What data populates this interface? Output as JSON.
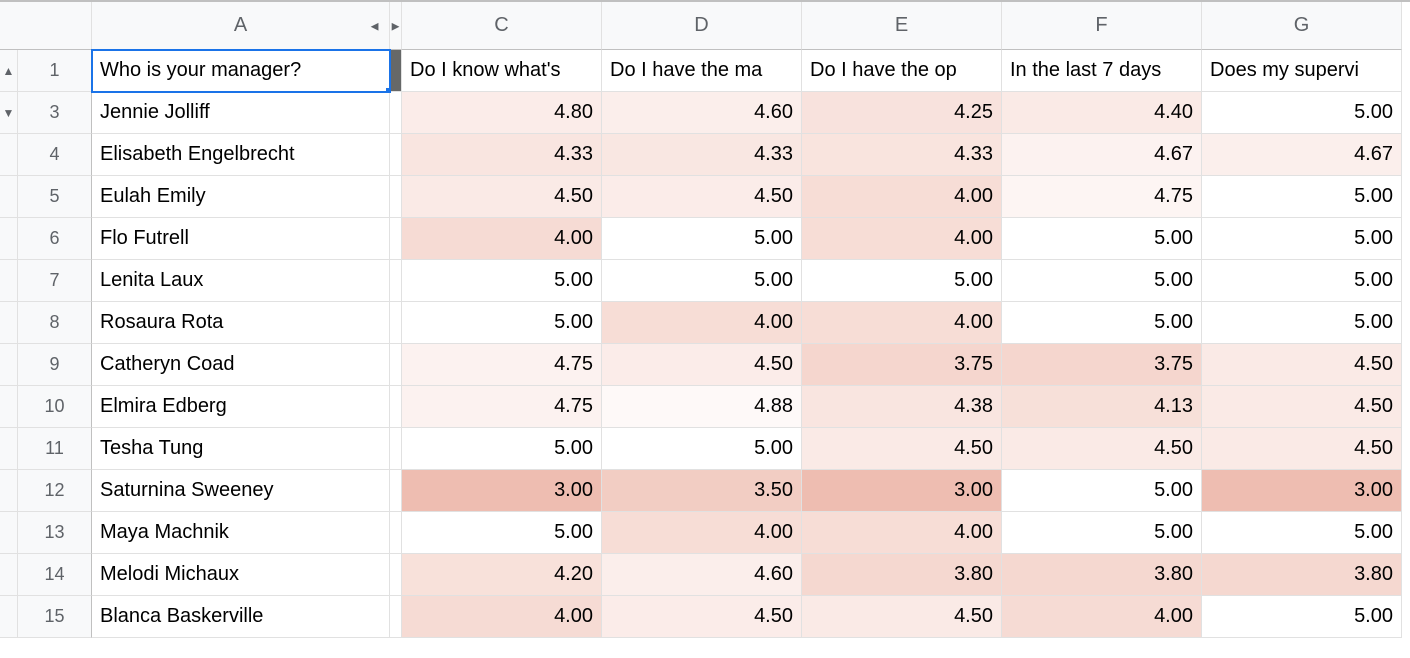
{
  "columns": {
    "A": "A",
    "C": "C",
    "D": "D",
    "E": "E",
    "F": "F",
    "G": "G"
  },
  "group_icons": {
    "collapse_left": "◄",
    "expand_right": "►",
    "collapse_up": "▲",
    "expand_down": "▼"
  },
  "header_row_num": "1",
  "headers": {
    "A": "Who is your manager?",
    "C": "Do I know what's ",
    "D": "Do I have the ma",
    "E": "Do I have the op",
    "F": "In the last 7 days",
    "G": "Does my supervi"
  },
  "row_numbers": [
    "3",
    "4",
    "5",
    "6",
    "7",
    "8",
    "9",
    "10",
    "11",
    "12",
    "13",
    "14",
    "15"
  ],
  "rows": [
    {
      "name": "Jennie Jolliff",
      "vals": [
        "4.80",
        "4.60",
        "4.25",
        "4.40",
        "5.00"
      ],
      "bg": [
        "#fbece9",
        "#fbeeeb",
        "#f8e2dd",
        "#faeae6",
        "#ffffff"
      ]
    },
    {
      "name": "Elisabeth Engelbrecht",
      "vals": [
        "4.33",
        "4.33",
        "4.33",
        "4.67",
        "4.67"
      ],
      "bg": [
        "#f9e5e0",
        "#f9e7e2",
        "#f9e4de",
        "#fcf2f0",
        "#fbefec"
      ]
    },
    {
      "name": "Eulah Emily",
      "vals": [
        "4.50",
        "4.50",
        "4.00",
        "4.75",
        "5.00"
      ],
      "bg": [
        "#faeae6",
        "#fbece9",
        "#f7ddd6",
        "#fdf5f3",
        "#ffffff"
      ]
    },
    {
      "name": "Flo Futrell",
      "vals": [
        "4.00",
        "5.00",
        "4.00",
        "5.00",
        "5.00"
      ],
      "bg": [
        "#f6dbd4",
        "#ffffff",
        "#f7ddd6",
        "#ffffff",
        "#ffffff"
      ]
    },
    {
      "name": "Lenita Laux",
      "vals": [
        "5.00",
        "5.00",
        "5.00",
        "5.00",
        "5.00"
      ],
      "bg": [
        "#ffffff",
        "#ffffff",
        "#ffffff",
        "#ffffff",
        "#ffffff"
      ]
    },
    {
      "name": "Rosaura Rota",
      "vals": [
        "5.00",
        "4.00",
        "4.00",
        "5.00",
        "5.00"
      ],
      "bg": [
        "#ffffff",
        "#f7ddd6",
        "#f7ddd6",
        "#ffffff",
        "#ffffff"
      ]
    },
    {
      "name": "Catheryn Coad",
      "vals": [
        "4.75",
        "4.50",
        "3.75",
        "3.75",
        "4.50"
      ],
      "bg": [
        "#fcf2f0",
        "#fbece9",
        "#f5d6ce",
        "#f5d6ce",
        "#faeae6"
      ]
    },
    {
      "name": "Elmira Edberg",
      "vals": [
        "4.75",
        "4.88",
        "4.38",
        "4.13",
        "4.50"
      ],
      "bg": [
        "#fcf2f0",
        "#fef9f8",
        "#f9e5e0",
        "#f7e0d9",
        "#faeae6"
      ]
    },
    {
      "name": "Tesha Tung",
      "vals": [
        "5.00",
        "5.00",
        "4.50",
        "4.50",
        "4.50"
      ],
      "bg": [
        "#ffffff",
        "#ffffff",
        "#faeae6",
        "#faeae6",
        "#faeae6"
      ]
    },
    {
      "name": "Saturnina Sweeney",
      "vals": [
        "3.00",
        "3.50",
        "3.00",
        "5.00",
        "3.00"
      ],
      "bg": [
        "#eebdb1",
        "#f2cdc3",
        "#eebdb1",
        "#ffffff",
        "#eebdb1"
      ]
    },
    {
      "name": "Maya Machnik",
      "vals": [
        "5.00",
        "4.00",
        "4.00",
        "5.00",
        "5.00"
      ],
      "bg": [
        "#ffffff",
        "#f7ddd6",
        "#f7ddd6",
        "#ffffff",
        "#ffffff"
      ]
    },
    {
      "name": "Melodi Michaux",
      "vals": [
        "4.20",
        "4.60",
        "3.80",
        "3.80",
        "3.80"
      ],
      "bg": [
        "#f8e1da",
        "#fbeeeb",
        "#f5d8d0",
        "#f5d8d0",
        "#f5d8d0"
      ]
    },
    {
      "name": "Blanca Baskerville",
      "vals": [
        "4.00",
        "4.50",
        "4.50",
        "4.00",
        "5.00"
      ],
      "bg": [
        "#f6dbd4",
        "#fbece9",
        "#faeae6",
        "#f6dbd4",
        "#ffffff"
      ]
    }
  ]
}
